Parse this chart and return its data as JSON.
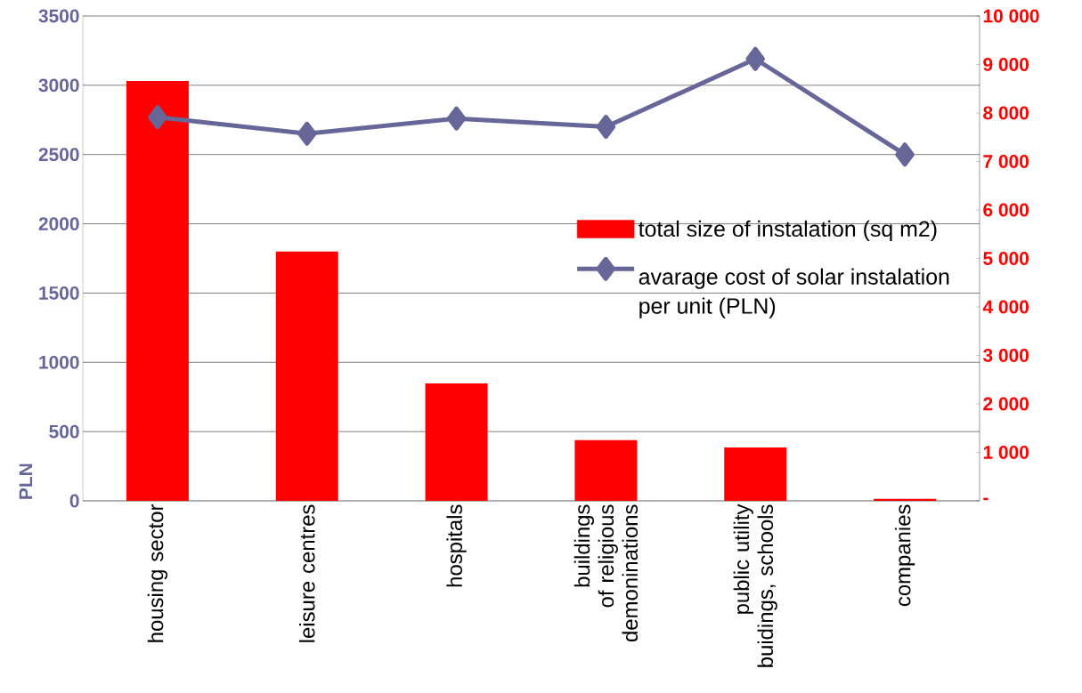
{
  "chart_data": {
    "type": "bar",
    "ylabel": "PLN",
    "categories": [
      "housing sector",
      "leisure centres",
      "hospitals",
      "buildings of religious demoninations",
      "public utility buidings, schools",
      "companies"
    ],
    "series": [
      {
        "name": "total size of instalation (sq m2)",
        "axis": "y2",
        "color": "#ff0000",
        "values": [
          8660,
          5140,
          2420,
          1250,
          1100,
          40
        ]
      },
      {
        "name": "avarage cost of solar instalation per unit (PLN)",
        "type": "line",
        "marker": "diamond",
        "color": "#666699",
        "values": [
          2770,
          2650,
          2760,
          2700,
          3190,
          2500
        ]
      }
    ],
    "ylim": [
      0,
      3500
    ],
    "yticks": [
      0,
      500,
      1000,
      1500,
      2000,
      2500,
      3000,
      3500
    ],
    "y2lim": [
      0,
      10000
    ],
    "y2ticks": [
      {
        "value": 0,
        "label": "-"
      },
      {
        "value": 1000,
        "label": "1 000"
      },
      {
        "value": 2000,
        "label": "2 000"
      },
      {
        "value": 3000,
        "label": "3 000"
      },
      {
        "value": 4000,
        "label": "4 000"
      },
      {
        "value": 5000,
        "label": "5 000"
      },
      {
        "value": 6000,
        "label": "6 000"
      },
      {
        "value": 7000,
        "label": "7 000"
      },
      {
        "value": 8000,
        "label": "8 000"
      },
      {
        "value": 9000,
        "label": "9 000"
      },
      {
        "value": 10000,
        "label": "10 000"
      }
    ],
    "grid": "y",
    "legend": "right"
  }
}
